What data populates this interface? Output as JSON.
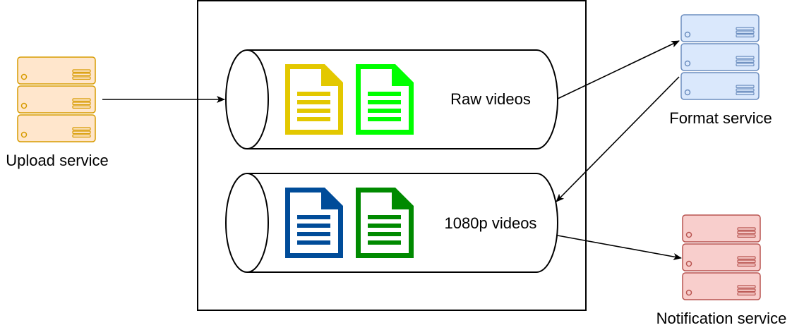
{
  "services": {
    "upload": {
      "label": "Upload service",
      "icon": "server-stack-icon",
      "fill": "#ffe6cc",
      "stroke": "#d79b00"
    },
    "format": {
      "label": "Format service",
      "icon": "server-stack-icon",
      "fill": "#dae8fc",
      "stroke": "#6c8ebf"
    },
    "notification": {
      "label": "Notification service",
      "icon": "server-stack-icon",
      "fill": "#f8cecc",
      "stroke": "#b85450"
    }
  },
  "queues": {
    "raw": {
      "label": "Raw videos",
      "files": [
        {
          "icon": "document-icon",
          "color": "#e3c800"
        },
        {
          "icon": "document-icon",
          "color": "#00ff00"
        }
      ]
    },
    "hd": {
      "label": "1080p videos",
      "files": [
        {
          "icon": "document-icon",
          "color": "#004c99"
        },
        {
          "icon": "document-icon",
          "color": "#008a00"
        }
      ]
    }
  }
}
